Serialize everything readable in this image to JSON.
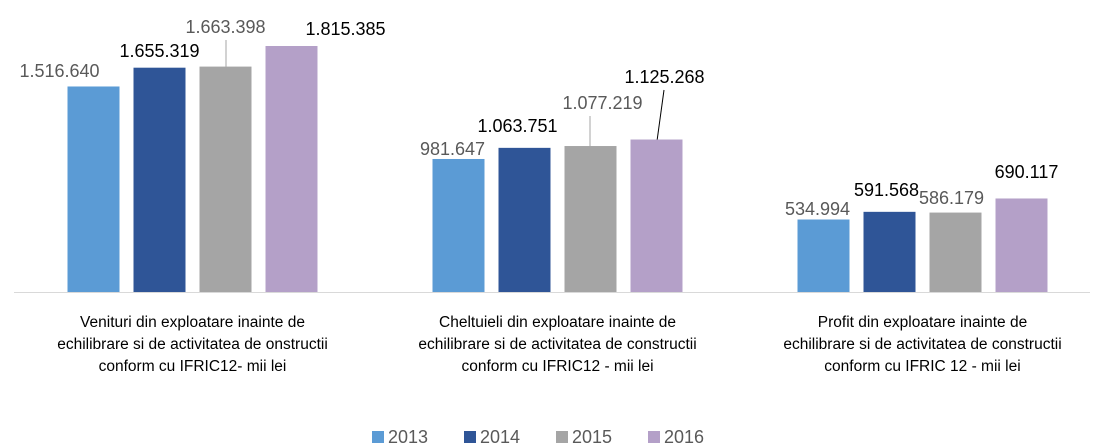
{
  "chart_data": {
    "type": "bar",
    "categories": [
      "Venituri din exploatare inainte de\nechilibrare si de activitatea de onstructii\nconform cu IFRIC12- mii lei",
      "Cheltuieli din exploatare inainte de\nechilibrare si de activitatea de constructii\nconform cu IFRIC12 - mii lei",
      "Profit din exploatare inainte de\nechilibrare si de activitatea de constructii\nconform cu IFRIC 12 - mii lei"
    ],
    "series": [
      {
        "name": "2013",
        "color": "#5b9bd5",
        "values": [
          1516640,
          981647,
          534994
        ],
        "value_labels": [
          "1.516.640",
          "981.647",
          "534.994"
        ]
      },
      {
        "name": "2014",
        "color": "#2f5597",
        "values": [
          1655319,
          1063751,
          591568
        ],
        "value_labels": [
          "1.655.319",
          "1.063.751",
          "591.568"
        ]
      },
      {
        "name": "2015",
        "color": "#a5a5a5",
        "values": [
          1663398,
          1077219,
          586179
        ],
        "value_labels": [
          "1.663.398",
          "1.077.219",
          "586.179"
        ]
      },
      {
        "name": "2016",
        "color": "#b4a0c8",
        "values": [
          1815385,
          1125268,
          690117
        ],
        "value_labels": [
          "1.815.385",
          "1.125.268",
          "690.117"
        ]
      }
    ],
    "legend": "bottom"
  }
}
